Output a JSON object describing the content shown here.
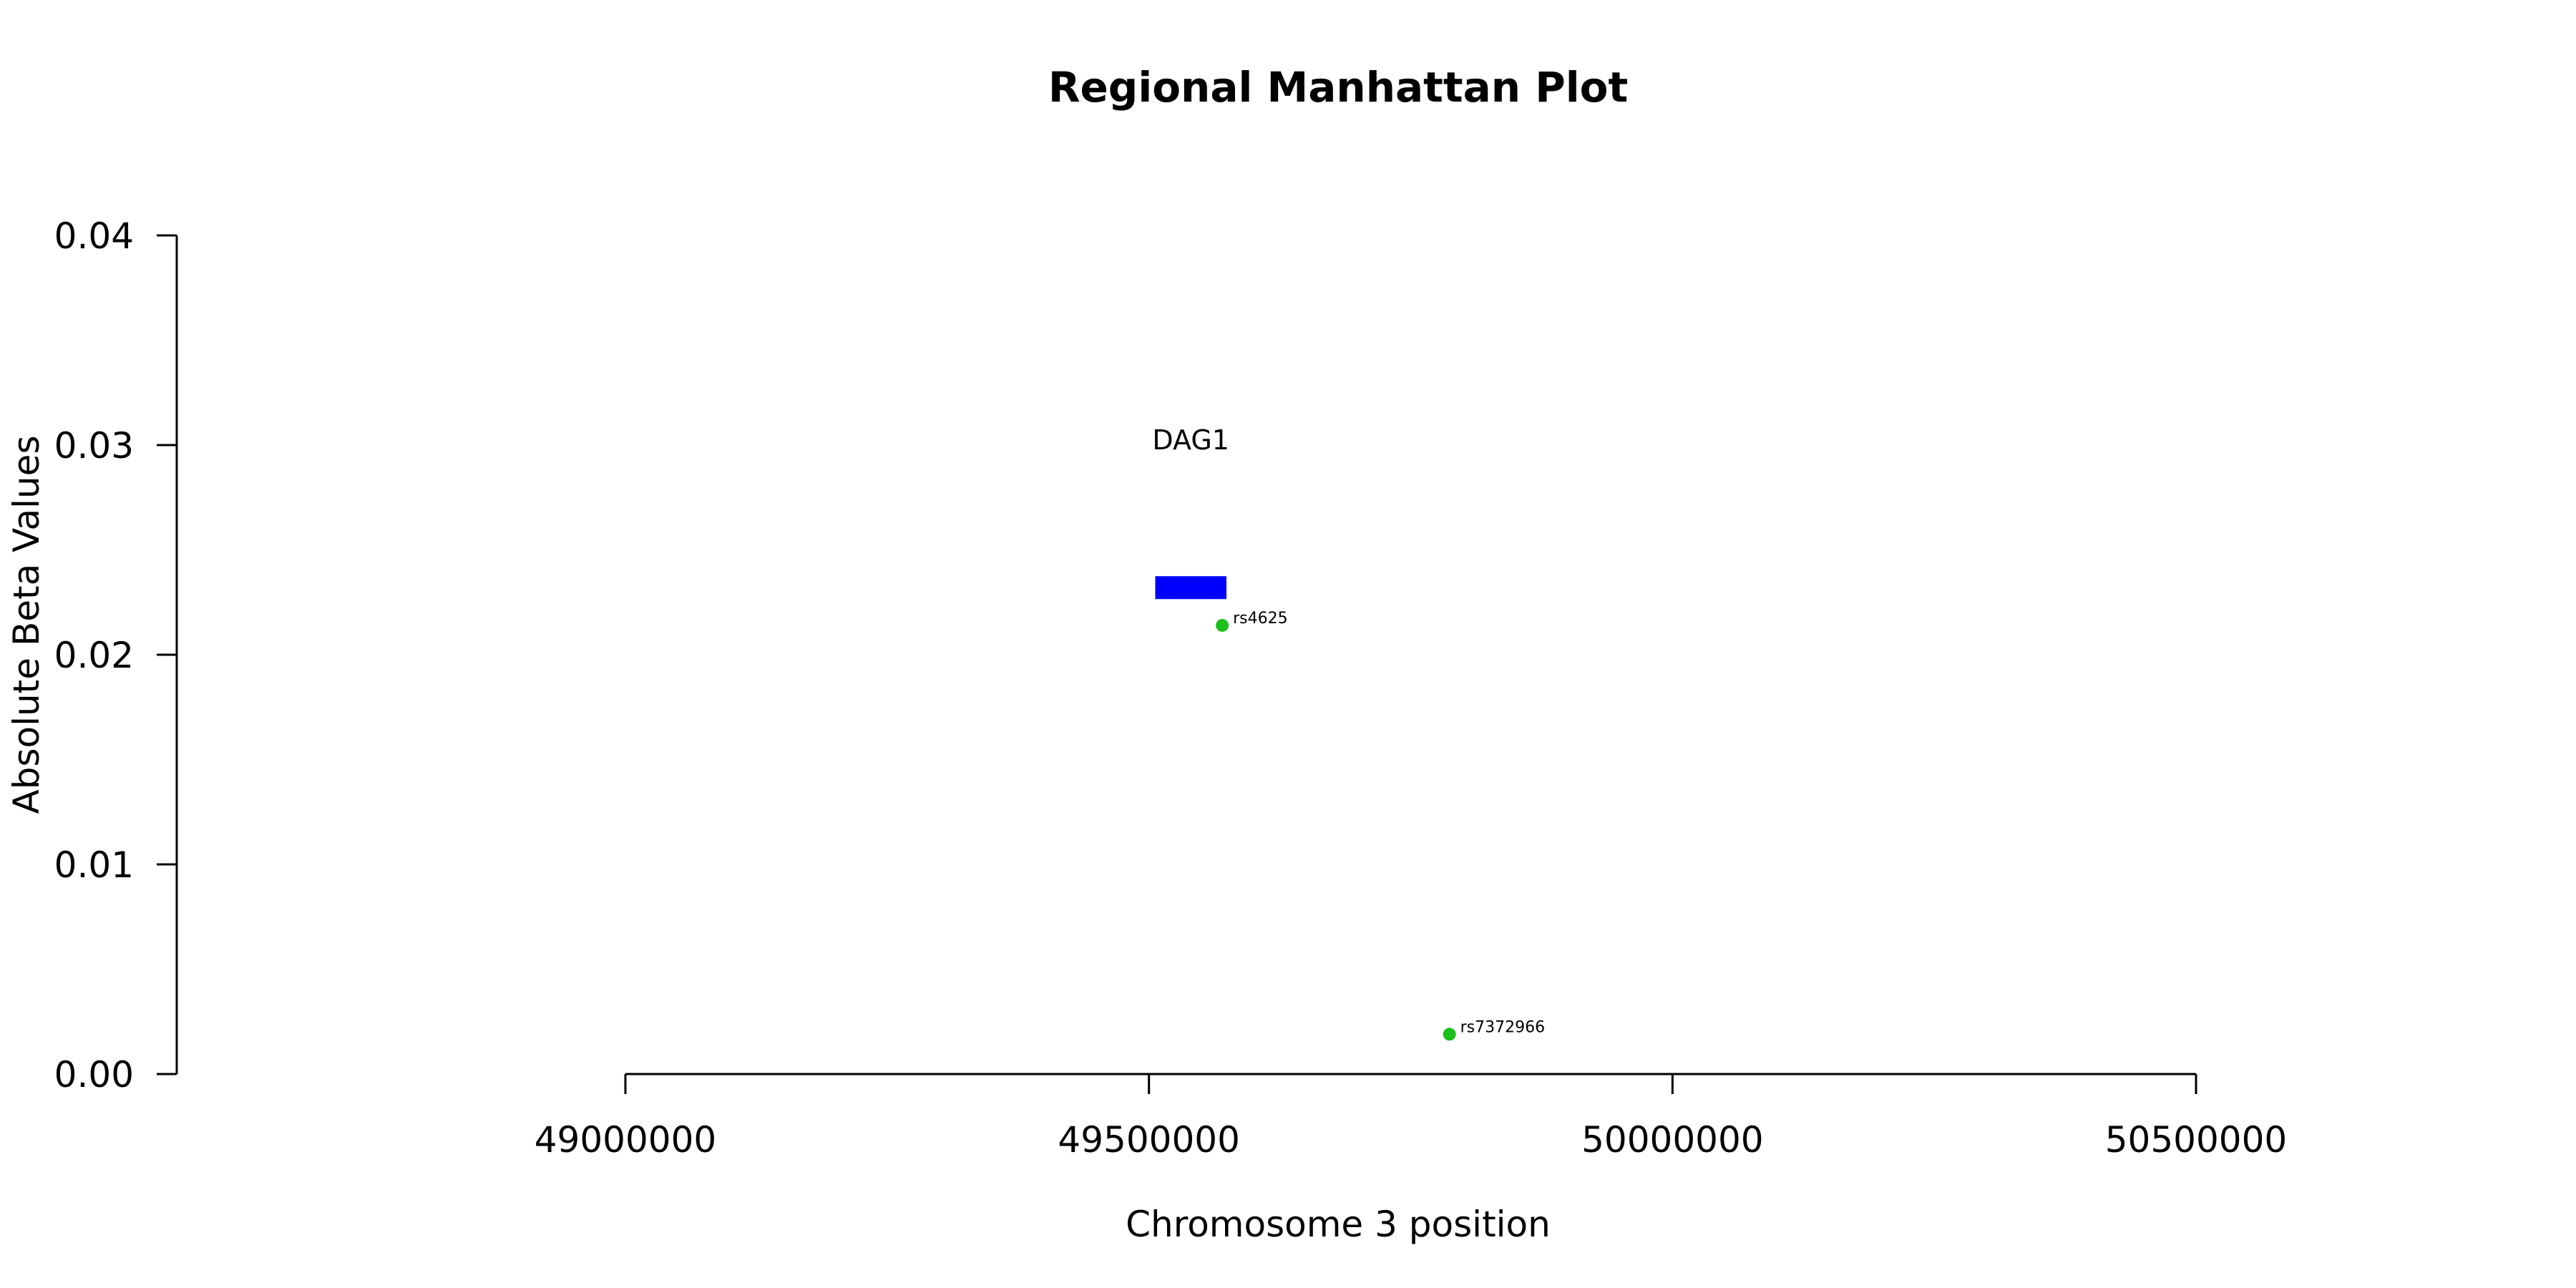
{
  "chart_data": {
    "type": "scatter",
    "title": "Regional Manhattan Plot",
    "xlabel": "Chromosome 3 position",
    "ylabel": "Absolute Beta Values",
    "xlim": [
      48575000,
      50500000
    ],
    "ylim": [
      0.0,
      0.04
    ],
    "xticks": [
      49000000,
      49500000,
      50000000,
      50500000
    ],
    "xtick_labels": [
      "49000000",
      "49500000",
      "50000000",
      "50500000"
    ],
    "yticks": [
      0.0,
      0.01,
      0.02,
      0.03,
      0.04
    ],
    "ytick_labels": [
      "0.00",
      "0.01",
      "0.02",
      "0.03",
      "0.04"
    ],
    "grid": false,
    "points": [
      {
        "label": "rs4625",
        "x": 49570000,
        "y": 0.0214
      },
      {
        "label": "rs7372966",
        "x": 49787000,
        "y": 0.0019
      }
    ],
    "genes": [
      {
        "name": "DAG1",
        "start": 49506000,
        "end": 49574000,
        "y": 0.0232
      }
    ],
    "colors": {
      "points": "#1cbf1c",
      "genes": "#0000ff",
      "axes": "#000000"
    }
  }
}
